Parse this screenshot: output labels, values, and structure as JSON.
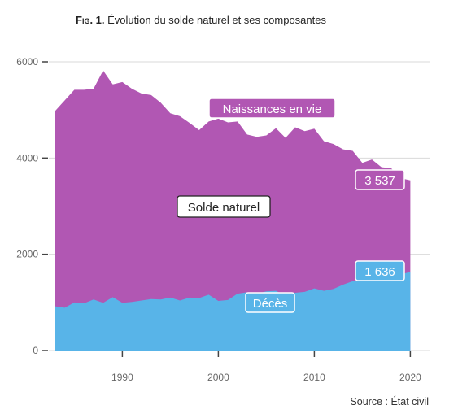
{
  "figure": {
    "number": "Fig. 1.",
    "title": "Évolution du solde naturel et ses composantes",
    "source": "Source : État civil"
  },
  "colors": {
    "births": "#b157b3",
    "deaths": "#58b4e8",
    "grid": "#d9d9d9",
    "axis_text": "#666666"
  },
  "chart_data": {
    "type": "area",
    "title": "Évolution du solde naturel et ses composantes",
    "xlabel": "",
    "ylabel": "",
    "xlim": [
      1982,
      2022
    ],
    "ylim": [
      0,
      6000
    ],
    "grid": true,
    "x_ticks": [
      1990,
      2000,
      2010,
      2020
    ],
    "y_ticks": [
      0,
      2000,
      4000,
      6000
    ],
    "x": [
      1983,
      1984,
      1985,
      1986,
      1987,
      1988,
      1989,
      1990,
      1991,
      1992,
      1993,
      1994,
      1995,
      1996,
      1997,
      1998,
      1999,
      2000,
      2001,
      2002,
      2003,
      2004,
      2005,
      2006,
      2007,
      2008,
      2009,
      2010,
      2011,
      2012,
      2013,
      2014,
      2015,
      2016,
      2017,
      2018,
      2019,
      2020
    ],
    "series": [
      {
        "name": "Naissances en vie",
        "values": [
          4980,
          5200,
          5420,
          5420,
          5440,
          5820,
          5530,
          5580,
          5440,
          5340,
          5310,
          5150,
          4930,
          4870,
          4730,
          4580,
          4760,
          4820,
          4740,
          4760,
          4490,
          4440,
          4470,
          4620,
          4420,
          4640,
          4560,
          4610,
          4350,
          4290,
          4180,
          4150,
          3900,
          3970,
          3810,
          3790,
          3580,
          3537
        ]
      },
      {
        "name": "Décès",
        "values": [
          920,
          890,
          1000,
          980,
          1060,
          990,
          1110,
          990,
          1010,
          1040,
          1070,
          1060,
          1100,
          1040,
          1100,
          1090,
          1160,
          1030,
          1050,
          1180,
          1210,
          1180,
          1230,
          1240,
          1140,
          1200,
          1220,
          1290,
          1240,
          1280,
          1370,
          1440,
          1450,
          1520,
          1560,
          1540,
          1580,
          1636
        ]
      }
    ],
    "labels": {
      "births": "Naissances en vie",
      "balance": "Solde naturel",
      "deaths": "Décès",
      "births_last_value": "3 537",
      "deaths_last_value": "1 636"
    }
  }
}
